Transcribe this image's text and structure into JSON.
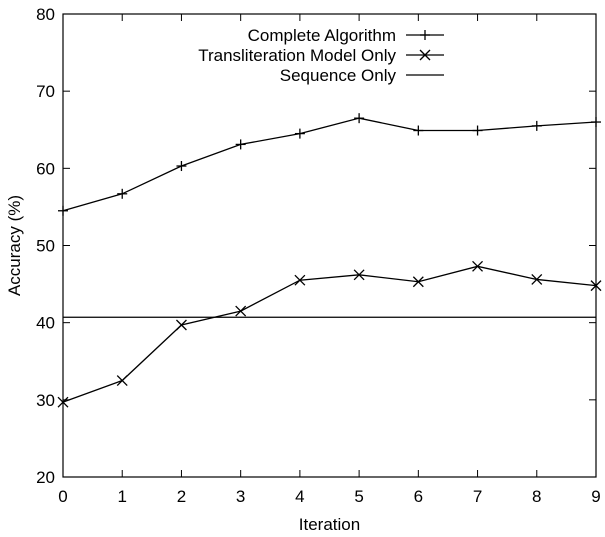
{
  "chart_data": {
    "type": "line",
    "title": "",
    "xlabel": "Iteration",
    "ylabel": "Accuracy (%)",
    "xlim": [
      0,
      9
    ],
    "ylim": [
      20,
      80
    ],
    "xticks": [
      "0",
      "1",
      "2",
      "3",
      "4",
      "5",
      "6",
      "7",
      "8",
      "9"
    ],
    "yticks": [
      "20",
      "30",
      "40",
      "50",
      "60",
      "70",
      "80"
    ],
    "grid": false,
    "legend_position": "top-right",
    "x": [
      0,
      1,
      2,
      3,
      4,
      5,
      6,
      7,
      8,
      9
    ],
    "series": [
      {
        "name": "Complete Algorithm",
        "marker": "plus",
        "color": "#000000",
        "values": [
          54.5,
          56.7,
          60.3,
          63.1,
          64.5,
          66.5,
          64.9,
          64.9,
          65.5,
          66.0
        ]
      },
      {
        "name": "Transliteration Model Only",
        "marker": "cross",
        "color": "#000000",
        "values": [
          29.7,
          32.5,
          39.7,
          41.5,
          45.5,
          46.2,
          45.3,
          47.3,
          45.6,
          44.8
        ]
      },
      {
        "name": "Sequence Only",
        "marker": "none",
        "color": "#000000",
        "values": [
          40.7,
          40.7,
          40.7,
          40.7,
          40.7,
          40.7,
          40.7,
          40.7,
          40.7,
          40.7
        ]
      }
    ]
  }
}
